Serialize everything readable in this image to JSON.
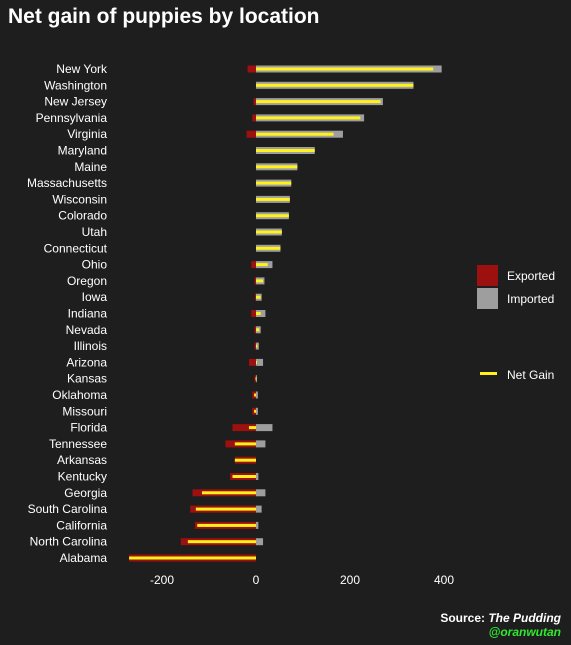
{
  "chart_data": {
    "type": "bar",
    "orientation": "horizontal",
    "title": "Net gain of puppies by location",
    "xlabel": "",
    "ylabel": "",
    "xlim": [
      -275,
      470
    ],
    "xticks": [
      -200,
      0,
      200,
      400
    ],
    "grid": false,
    "legend_position": "right",
    "categories": [
      "New York",
      "Washington",
      "New Jersey",
      "Pennsylvania",
      "Virginia",
      "Maryland",
      "Maine",
      "Massachusetts",
      "Wisconsin",
      "Colorado",
      "Utah",
      "Connecticut",
      "Ohio",
      "Oregon",
      "Iowa",
      "Indiana",
      "Nevada",
      "Illinois",
      "Arizona",
      "Kansas",
      "Oklahoma",
      "Missouri",
      "Florida",
      "Tennessee",
      "Arkansas",
      "Kentucky",
      "Georgia",
      "South Carolina",
      "California",
      "North Carolina",
      "Alabama"
    ],
    "series": [
      {
        "name": "Exported",
        "color": "#9c1010",
        "values": [
          -18,
          0,
          -5,
          -8,
          -20,
          0,
          0,
          0,
          0,
          0,
          0,
          0,
          -10,
          -3,
          -2,
          -10,
          -3,
          -3,
          -15,
          -3,
          -8,
          -8,
          -50,
          -65,
          -45,
          -55,
          -135,
          -140,
          -130,
          -160,
          -270
        ]
      },
      {
        "name": "Imported",
        "color": "#9e9e9e",
        "values": [
          395,
          335,
          270,
          230,
          185,
          125,
          88,
          75,
          72,
          70,
          55,
          52,
          35,
          18,
          12,
          20,
          10,
          6,
          15,
          2,
          4,
          4,
          35,
          20,
          0,
          5,
          20,
          12,
          5,
          15,
          0
        ]
      },
      {
        "name": "Net Gain",
        "color": "#fff21c",
        "values": [
          377,
          335,
          265,
          222,
          165,
          125,
          88,
          75,
          72,
          70,
          55,
          52,
          25,
          15,
          10,
          10,
          7,
          3,
          0,
          -1,
          -4,
          -4,
          -15,
          -45,
          -45,
          -50,
          -115,
          -128,
          -125,
          -145,
          -270
        ]
      }
    ]
  },
  "source": {
    "label": "Source:",
    "name": "The Pudding",
    "handle": "@oranwutan"
  }
}
